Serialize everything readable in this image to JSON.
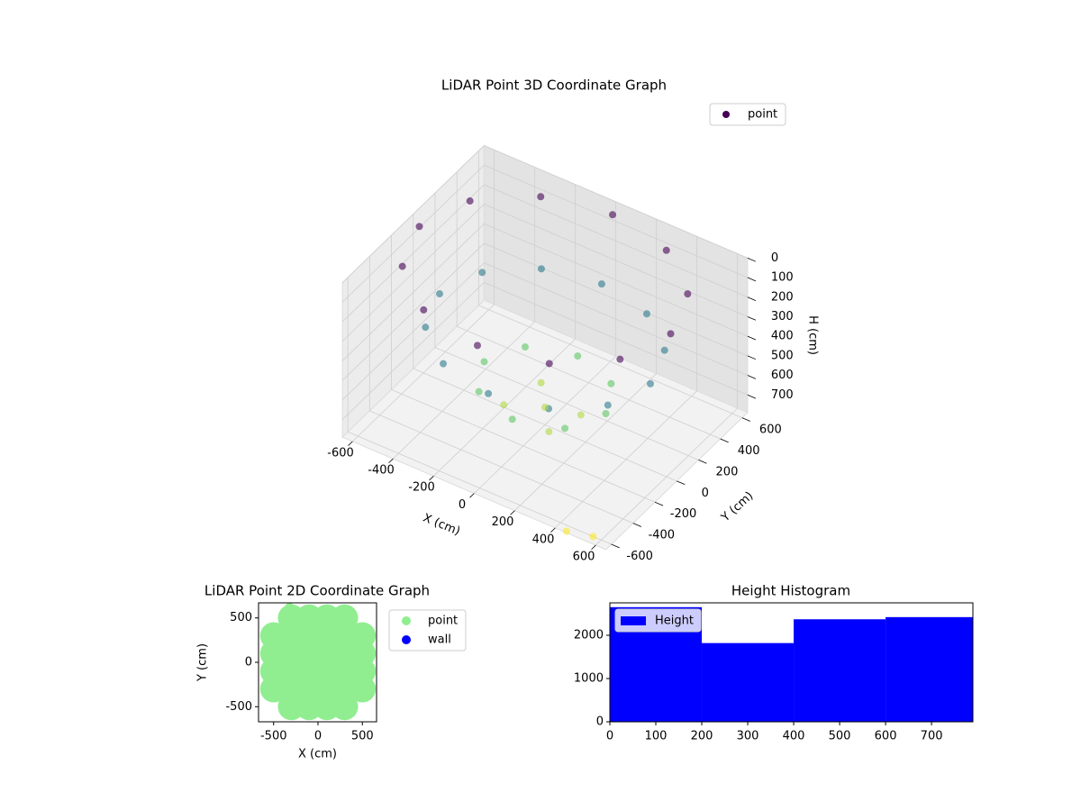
{
  "chart_data": [
    {
      "type": "scatter3d",
      "title": "LiDAR Point 3D Coordinate Graph",
      "xlabel": "X (cm)",
      "ylabel": "Y (cm)",
      "zlabel": "H (cm)",
      "xlim": [
        -650,
        650
      ],
      "ylim": [
        -650,
        650
      ],
      "zlim": [
        0,
        790
      ],
      "z_inverted": true,
      "xticks": [
        -600,
        -400,
        -200,
        0,
        200,
        400,
        600
      ],
      "yticks": [
        -600,
        -400,
        -200,
        0,
        200,
        400,
        600
      ],
      "zticks": [
        0,
        100,
        200,
        300,
        400,
        500,
        600,
        700
      ],
      "colormap": "viridis",
      "legend": "upper right",
      "grid": true,
      "series": [
        {
          "name": "point",
          "color": "#440154",
          "x": [
            620,
            537,
            310,
            0,
            -310,
            -537,
            -620,
            -537,
            -310,
            0,
            310,
            537,
            520,
            450,
            260,
            0,
            -260,
            -450,
            -520,
            -450,
            -260,
            0,
            260,
            450,
            300,
            212,
            0,
            -212,
            -300,
            -212,
            0,
            212,
            0,
            150,
            -100,
            -150,
            100,
            450,
            560
          ],
          "y": [
            0,
            310,
            537,
            620,
            537,
            310,
            0,
            -310,
            -537,
            -620,
            -537,
            -310,
            0,
            260,
            450,
            520,
            450,
            260,
            0,
            -260,
            -450,
            -520,
            -450,
            -260,
            0,
            212,
            300,
            212,
            0,
            -212,
            -300,
            -212,
            0,
            50,
            150,
            -100,
            -150,
            -640,
            -600
          ],
          "z": [
            50,
            50,
            50,
            50,
            50,
            50,
            50,
            50,
            50,
            50,
            50,
            50,
            350,
            350,
            350,
            350,
            350,
            350,
            350,
            350,
            350,
            350,
            350,
            350,
            600,
            600,
            600,
            600,
            600,
            600,
            600,
            600,
            700,
            700,
            700,
            700,
            700,
            790,
            790
          ]
        }
      ]
    },
    {
      "type": "scatter",
      "title": "LiDAR Point 2D Coordinate Graph",
      "xlabel": "X (cm)",
      "ylabel": "Y (cm)",
      "xlim": [
        -670,
        660
      ],
      "ylim": [
        -670,
        670
      ],
      "xticks": [
        -500,
        0,
        500
      ],
      "yticks": [
        -500,
        0,
        500
      ],
      "legend": "outside right",
      "series": [
        {
          "name": "point",
          "color": "#90ee90",
          "x": [
            -300,
            -100,
            100,
            300,
            -500,
            -300,
            -100,
            100,
            300,
            500,
            -500,
            -300,
            -100,
            100,
            300,
            500,
            -500,
            -300,
            -100,
            100,
            300,
            500,
            -500,
            -300,
            -100,
            100,
            300,
            500,
            -300,
            -100,
            100,
            300,
            -320
          ],
          "y": [
            500,
            500,
            500,
            500,
            300,
            300,
            300,
            300,
            300,
            300,
            100,
            100,
            100,
            100,
            100,
            100,
            -100,
            -100,
            -100,
            -100,
            -100,
            -100,
            -300,
            -300,
            -300,
            -300,
            -300,
            -300,
            -500,
            -500,
            -500,
            -500,
            620
          ]
        },
        {
          "name": "wall",
          "color": "#0000ff",
          "x": [],
          "y": []
        }
      ]
    },
    {
      "type": "histogram",
      "title": "Height Histogram",
      "bins": [
        0,
        200,
        400,
        600,
        790
      ],
      "counts": [
        2650,
        1820,
        2370,
        2420
      ],
      "xlim": [
        0,
        790
      ],
      "ylim": [
        0,
        2750
      ],
      "xticks": [
        0,
        100,
        200,
        300,
        400,
        500,
        600,
        700
      ],
      "yticks": [
        0,
        1000,
        2000
      ],
      "series_name": "Height",
      "color": "#0000ff",
      "legend": "upper left"
    }
  ]
}
